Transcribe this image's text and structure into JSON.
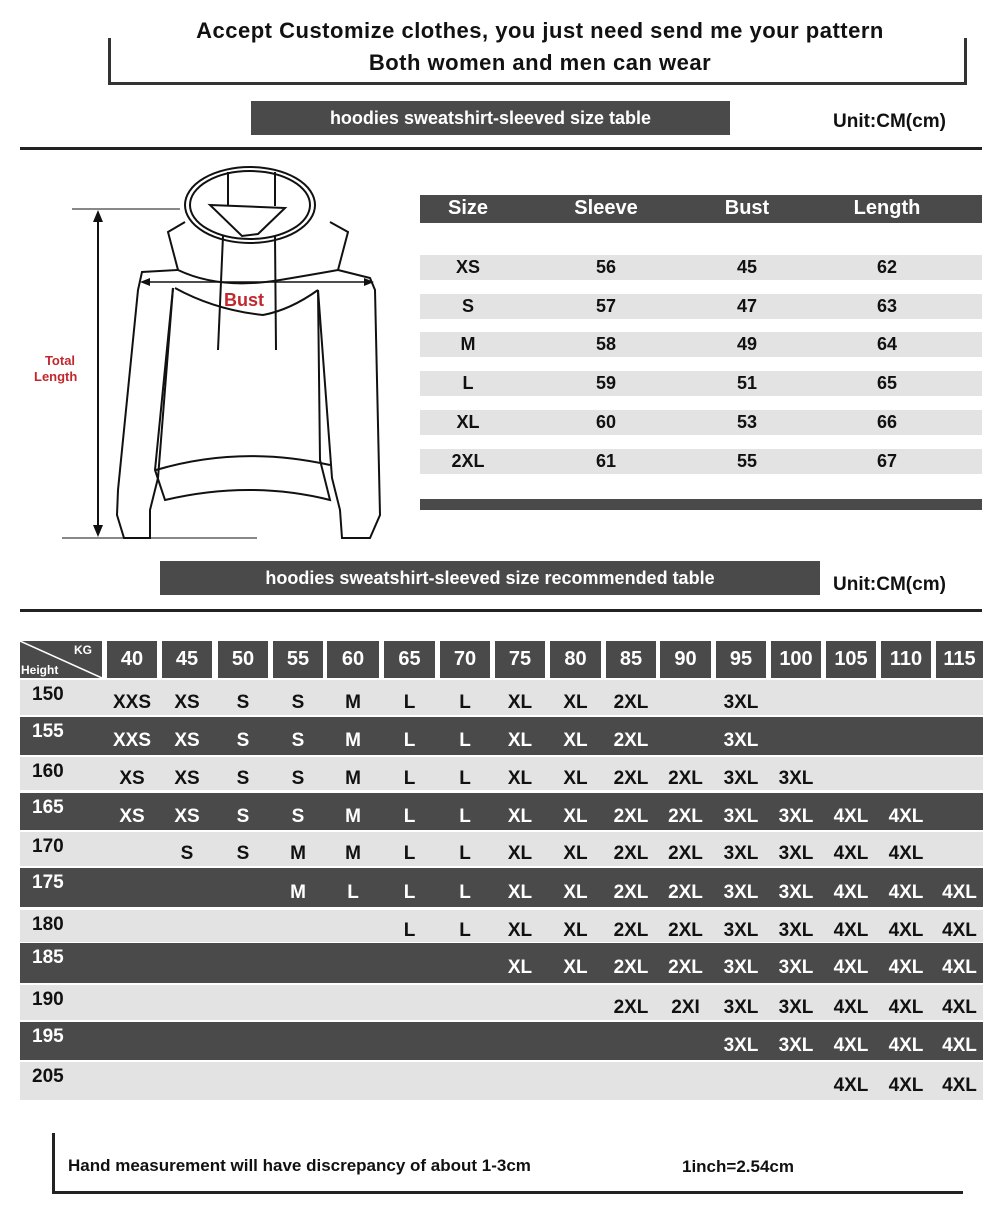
{
  "header": {
    "line1": "Accept Customize clothes, you just need send me your pattern",
    "line2": "Both women and men can wear"
  },
  "size_table": {
    "title": "hoodies sweatshirt-sleeved size  table",
    "unit": "Unit:CM(cm)",
    "columns": [
      "Size",
      "Sleeve",
      "Bust",
      "Length"
    ],
    "rows": [
      [
        "XS",
        "56",
        "45",
        "62"
      ],
      [
        "S",
        "57",
        "47",
        "63"
      ],
      [
        "M",
        "58",
        "49",
        "64"
      ],
      [
        "L",
        "59",
        "51",
        "65"
      ],
      [
        "XL",
        "60",
        "53",
        "66"
      ],
      [
        "2XL",
        "61",
        "55",
        "67"
      ]
    ]
  },
  "diagram": {
    "bust_label": "Bust",
    "length_label_1": "Total",
    "length_label_2": "Length",
    "label_color": "#c0282d"
  },
  "recommend_table": {
    "title": "hoodies sweatshirt-sleeved size recommended table",
    "unit": "Unit:CM(cm)",
    "corner_kg": "KG",
    "corner_height": "Height",
    "weights": [
      "40",
      "45",
      "50",
      "55",
      "60",
      "65",
      "70",
      "75",
      "80",
      "85",
      "90",
      "95",
      "100",
      "105",
      "110",
      "115"
    ],
    "rows": [
      {
        "height": "150",
        "sizes": [
          "XXS",
          "XS",
          "S",
          "S",
          "M",
          "L",
          "L",
          "XL",
          "XL",
          "2XL",
          "",
          "3XL",
          "",
          "",
          "",
          ""
        ]
      },
      {
        "height": "155",
        "sizes": [
          "XXS",
          "XS",
          "S",
          "S",
          "M",
          "L",
          "L",
          "XL",
          "XL",
          "2XL",
          "",
          "3XL",
          "",
          "",
          "",
          ""
        ]
      },
      {
        "height": "160",
        "sizes": [
          "XS",
          "XS",
          "S",
          "S",
          "M",
          "L",
          "L",
          "XL",
          "XL",
          "2XL",
          "2XL",
          "3XL",
          "3XL",
          "",
          "",
          ""
        ]
      },
      {
        "height": "165",
        "sizes": [
          "XS",
          "XS",
          "S",
          "S",
          "M",
          "L",
          "L",
          "XL",
          "XL",
          "2XL",
          "2XL",
          "3XL",
          "3XL",
          "4XL",
          "4XL",
          ""
        ]
      },
      {
        "height": "170",
        "sizes": [
          "",
          "S",
          "S",
          "M",
          "M",
          "L",
          "L",
          "XL",
          "XL",
          "2XL",
          "2XL",
          "3XL",
          "3XL",
          "4XL",
          "4XL",
          ""
        ]
      },
      {
        "height": "175",
        "sizes": [
          "",
          "",
          "",
          "M",
          "L",
          "L",
          "L",
          "XL",
          "XL",
          "2XL",
          "2XL",
          "3XL",
          "3XL",
          "4XL",
          "4XL",
          "4XL"
        ]
      },
      {
        "height": "180",
        "sizes": [
          "",
          "",
          "",
          "",
          "",
          "L",
          "L",
          "XL",
          "XL",
          "2XL",
          "2XL",
          "3XL",
          "3XL",
          "4XL",
          "4XL",
          "4XL"
        ]
      },
      {
        "height": "185",
        "sizes": [
          "",
          "",
          "",
          "",
          "",
          "",
          "",
          "XL",
          "XL",
          "2XL",
          "2XL",
          "3XL",
          "3XL",
          "4XL",
          "4XL",
          "4XL"
        ]
      },
      {
        "height": "190",
        "sizes": [
          "",
          "",
          "",
          "",
          "",
          "",
          "",
          "",
          "",
          "2XL",
          "2XI",
          "3XL",
          "3XL",
          "4XL",
          "4XL",
          "4XL"
        ]
      },
      {
        "height": "195",
        "sizes": [
          "",
          "",
          "",
          "",
          "",
          "",
          "",
          "",
          "",
          "",
          "",
          "3XL",
          "3XL",
          "4XL",
          "4XL",
          "4XL"
        ]
      },
      {
        "height": "205",
        "sizes": [
          "",
          "",
          "",
          "",
          "",
          "",
          "",
          "",
          "",
          "",
          "",
          "",
          "",
          "4XL",
          "4XL",
          "4XL"
        ]
      }
    ]
  },
  "footer": {
    "note": "Hand measurement will have discrepancy of about  1-3cm",
    "conversion": "1inch=2.54cm"
  },
  "colors": {
    "bar": "#4a4a4a",
    "light_row": "#e3e3e3",
    "accent_red": "#c0282d"
  }
}
